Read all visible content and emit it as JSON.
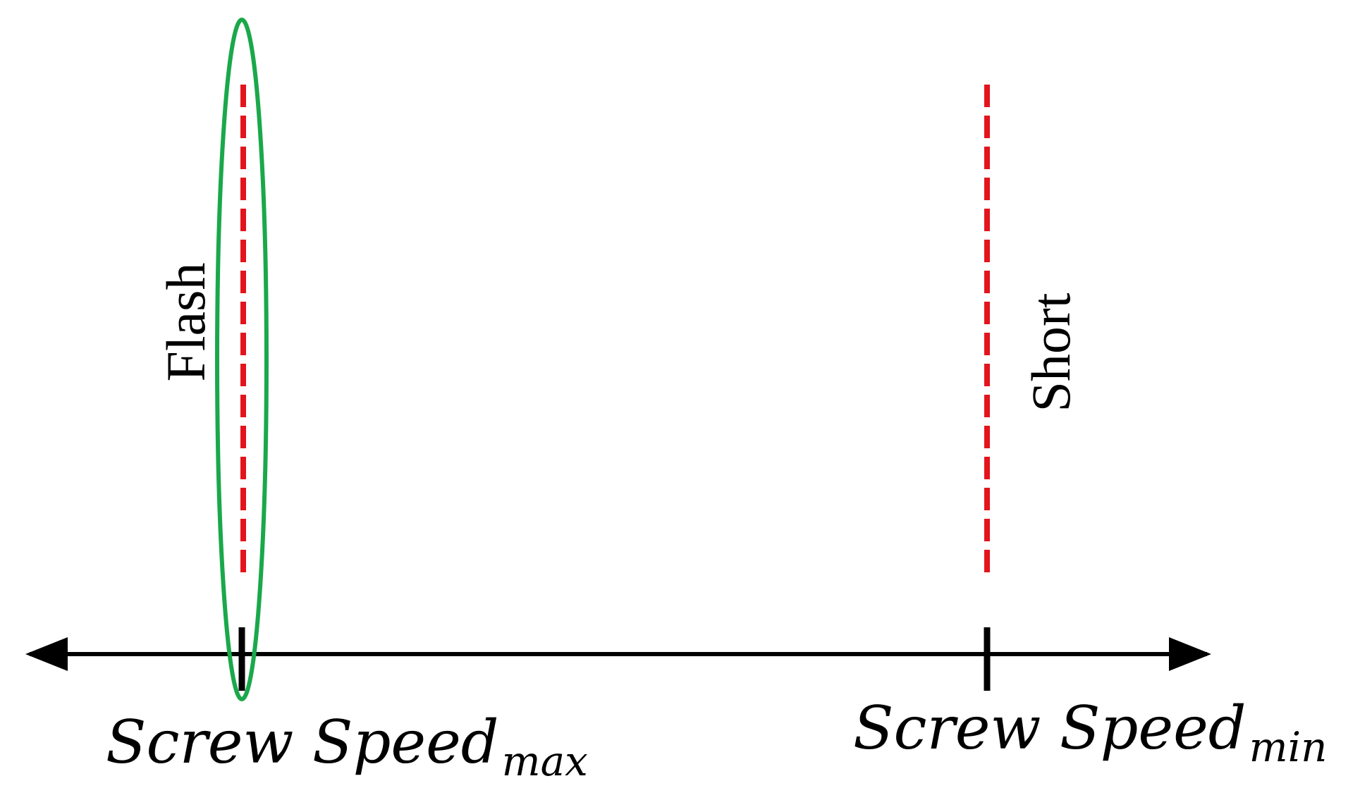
{
  "diagram": {
    "colors": {
      "axis": "#000000",
      "limit_line": "#e3141c",
      "highlight": "#1aa84a"
    },
    "labels": {
      "flash": "Flash",
      "short": "Short",
      "speed_max_base": "Screw Speed",
      "speed_max_sub": "max",
      "speed_min_base": "Screw Speed",
      "speed_min_sub": "min"
    }
  }
}
